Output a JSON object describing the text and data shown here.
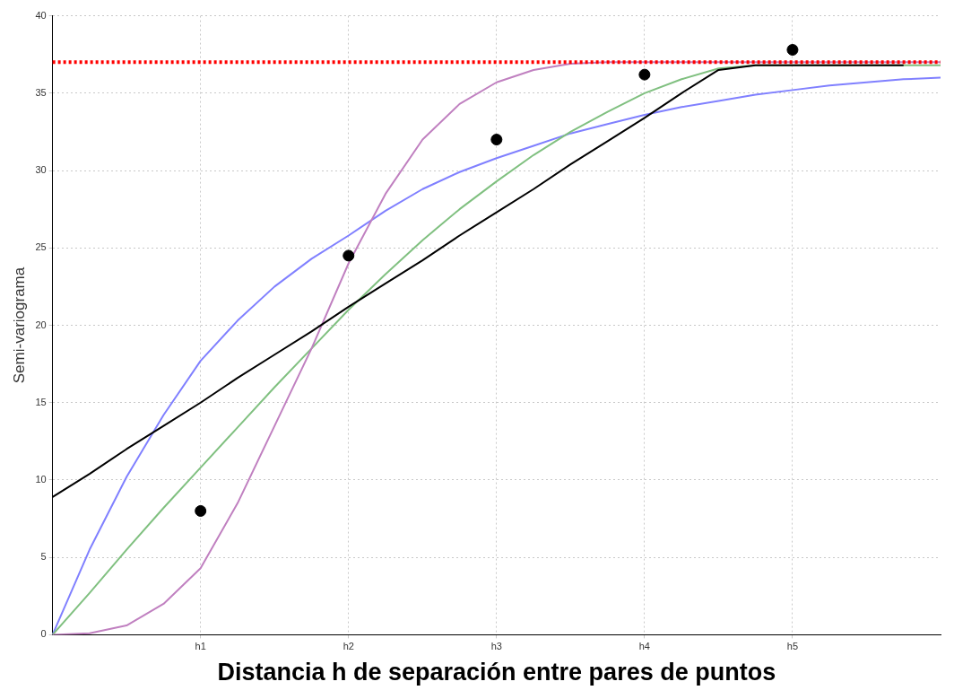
{
  "chart_data": {
    "type": "line",
    "xlabel": "Distancia h de separación entre pares de puntos",
    "ylabel": "Semi-variograma",
    "categories": [
      null,
      null,
      null,
      null,
      "h1",
      null,
      null,
      null,
      "h2",
      null,
      null,
      null,
      "h3",
      null,
      null,
      null,
      "h4",
      null,
      null,
      null,
      "h5",
      null,
      null,
      null,
      null
    ],
    "ylim": [
      0,
      40
    ],
    "yticks": [
      0,
      5,
      10,
      15,
      20,
      25,
      30,
      35,
      40
    ],
    "grid": true,
    "series": [
      {
        "color": "#8080ff",
        "values": [
          0,
          5.5,
          10.2,
          14.2,
          17.7,
          20.3,
          22.5,
          24.3,
          25.8,
          27.4,
          28.8,
          29.9,
          30.8,
          31.6,
          32.4,
          33,
          33.6,
          34.1,
          34.5,
          34.9,
          35.2,
          35.5,
          35.7,
          35.9,
          36
        ]
      },
      {
        "color": "#80c080",
        "values": [
          0,
          2.7,
          5.5,
          8.2,
          10.8,
          13.4,
          16,
          18.5,
          21,
          23.3,
          25.5,
          27.5,
          29.3,
          31,
          32.5,
          33.8,
          35,
          35.9,
          36.6,
          36.8,
          36.8,
          36.8,
          36.8,
          36.8,
          36.8
        ]
      },
      {
        "color": "#c080c0",
        "values": [
          0,
          0.1,
          0.6,
          2,
          4.3,
          8.5,
          13.5,
          18.5,
          24,
          28.5,
          32,
          34.3,
          35.7,
          36.5,
          36.9,
          37,
          37,
          37,
          37,
          37,
          37,
          37,
          37,
          37,
          37
        ]
      },
      {
        "color": "#000000",
        "values": [
          8.9,
          10.4,
          12,
          13.5,
          15,
          16.6,
          18.1,
          19.6,
          21.2,
          22.7,
          24.2,
          25.8,
          27.3,
          28.8,
          30.4,
          31.9,
          33.4,
          35,
          36.5,
          36.8,
          36.8,
          36.8,
          36.8,
          36.8,
          null
        ]
      },
      {
        "type": "scatter",
        "color": "#000000",
        "marker": "circle",
        "values": [
          null,
          null,
          null,
          null,
          8,
          null,
          null,
          null,
          24.5,
          null,
          null,
          null,
          32,
          null,
          null,
          null,
          36.2,
          null,
          null,
          null,
          37.8,
          null,
          null,
          null,
          null
        ]
      }
    ],
    "ref_lines": [
      {
        "axis": "y",
        "value": 37,
        "color": "#ff0000",
        "line_style": "dotted"
      }
    ]
  }
}
